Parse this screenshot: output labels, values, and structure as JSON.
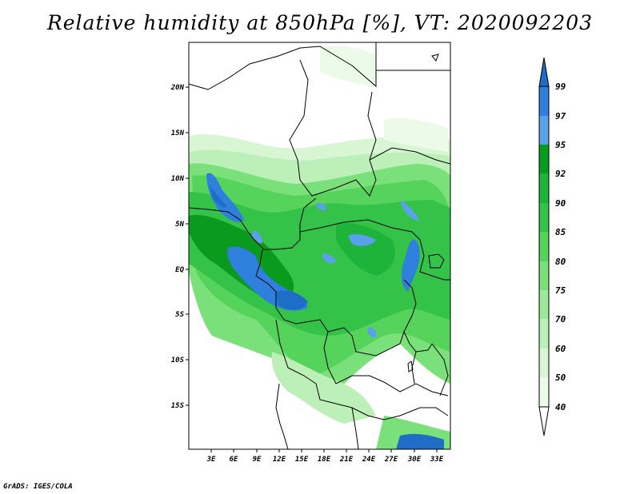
{
  "title": "Relative humidity at 850hPa [%], VT: 2020092203",
  "credit": "GrADS: IGES/COLA",
  "map": {
    "lat_labels": [
      "20N",
      "15N",
      "10N",
      "5N",
      "EQ",
      "5S",
      "10S",
      "15S"
    ],
    "lon_labels": [
      "3E",
      "6E",
      "9E",
      "12E",
      "15E",
      "18E",
      "21E",
      "24E",
      "27E",
      "30E",
      "33E"
    ]
  },
  "colorbar": {
    "levels": [
      "99",
      "97",
      "95",
      "92",
      "90",
      "85",
      "80",
      "75",
      "70",
      "60",
      "50",
      "40"
    ],
    "colors": {
      "above99": "#1e6ec8",
      "97_99": "#2f7fdc",
      "95_97": "#5aa0ea",
      "92_95": "#0a9a1e",
      "90_92": "#1eb43c",
      "85_90": "#34c348",
      "80_85": "#55d35a",
      "75_80": "#7ae07a",
      "70_75": "#9ee89a",
      "60_70": "#bdf0b8",
      "50_60": "#d8f6d3",
      "40_50": "#ebfbe8",
      "below40": "#ffffff"
    }
  }
}
